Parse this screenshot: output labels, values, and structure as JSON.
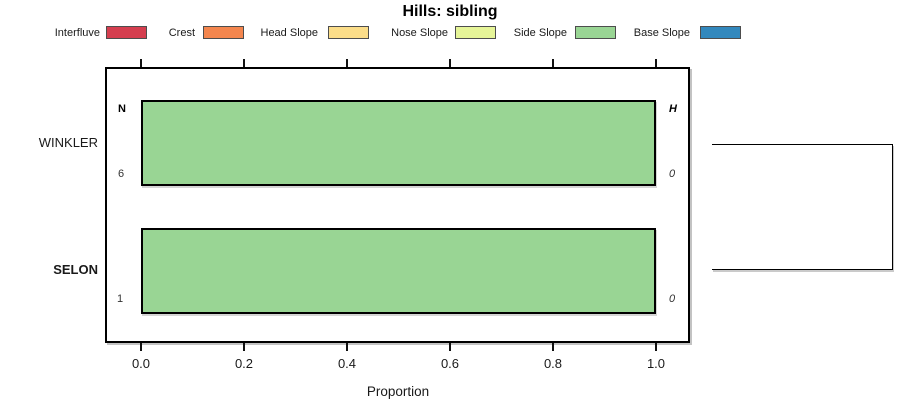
{
  "title": "Hills: sibling",
  "legend": {
    "items": [
      {
        "label": "Interfluve",
        "color": "#D53E4F"
      },
      {
        "label": "Crest",
        "color": "#F4864E"
      },
      {
        "label": "Head Slope",
        "color": "#FBDD89"
      },
      {
        "label": "Nose Slope",
        "color": "#E6F598"
      },
      {
        "label": "Side Slope",
        "color": "#99D594"
      },
      {
        "label": "Base Slope",
        "color": "#3288BD"
      }
    ]
  },
  "rows": [
    {
      "label": "WINKLER",
      "n": "6",
      "h": "0",
      "value": 1.0
    },
    {
      "label": "SELON",
      "n": "1",
      "h": "0",
      "value": 1.0
    }
  ],
  "column_headers": {
    "left": "N",
    "right": "H"
  },
  "x_axis": {
    "label": "Proportion",
    "ticks": [
      "0.0",
      "0.2",
      "0.4",
      "0.6",
      "0.8",
      "1.0"
    ]
  },
  "colors": {
    "bar_fill": "#99D594",
    "bar_border": "#000000",
    "panel_border": "#000000"
  },
  "chart_data": {
    "type": "bar",
    "orientation": "horizontal",
    "title": "Hills: sibling",
    "xlabel": "Proportion",
    "xlim": [
      0,
      1
    ],
    "x_ticks": [
      0.0,
      0.2,
      0.4,
      0.6,
      0.8,
      1.0
    ],
    "categories": [
      "WINKLER",
      "SELON"
    ],
    "series": [
      {
        "name": "Interfluve",
        "color": "#D53E4F",
        "values": [
          0,
          0
        ]
      },
      {
        "name": "Crest",
        "color": "#F4864E",
        "values": [
          0,
          0
        ]
      },
      {
        "name": "Head Slope",
        "color": "#FBDD89",
        "values": [
          0,
          0
        ]
      },
      {
        "name": "Nose Slope",
        "color": "#E6F598",
        "values": [
          0,
          0
        ]
      },
      {
        "name": "Side Slope",
        "color": "#99D594",
        "values": [
          1.0,
          1.0
        ]
      },
      {
        "name": "Base Slope",
        "color": "#3288BD",
        "values": [
          0,
          0
        ]
      }
    ],
    "annotations": {
      "left_column": {
        "header": "N",
        "values": [
          6,
          1
        ]
      },
      "right_column": {
        "header": "H",
        "values": [
          0,
          0
        ]
      }
    },
    "legend_position": "top",
    "grid": false,
    "extras": "two-leaf dendrogram bracket on right side joining WINKLER and SELON rows"
  }
}
